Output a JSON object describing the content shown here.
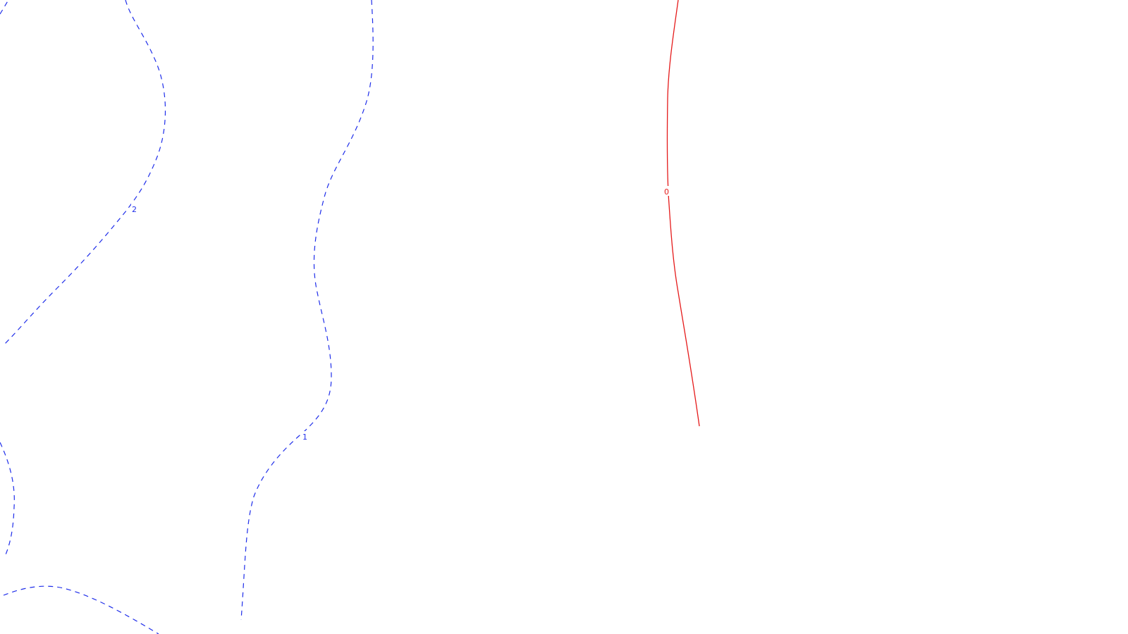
{
  "colors": {
    "background": "#ffffff",
    "dashed_contours": "#1f2eea",
    "zero_contour": "#e51a1a"
  },
  "contour_labels": {
    "level_2": "2",
    "level_1": "1",
    "level_0": "0"
  }
}
